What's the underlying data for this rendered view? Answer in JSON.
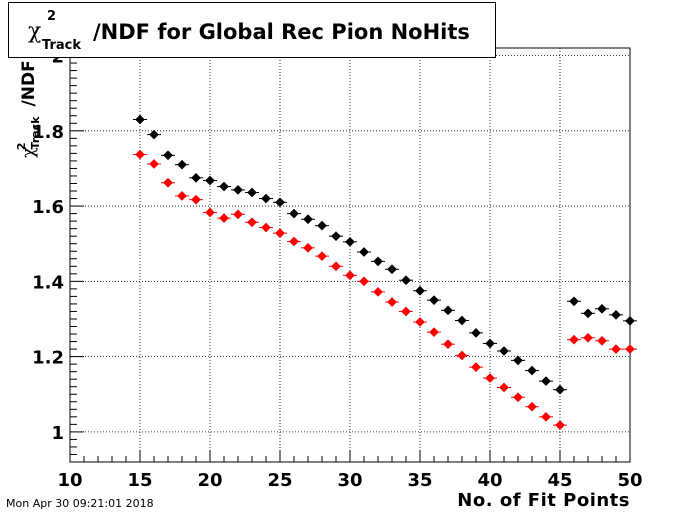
{
  "title": {
    "chi_symbol": "χ",
    "superscript": "2",
    "subscript": "Track",
    "rest": "/NDF for Global Rec Pion NoHits"
  },
  "axes": {
    "xlabel": "No. of Fit Points",
    "ylabel_chi": "χ",
    "ylabel_sup": "2",
    "ylabel_sub": "Track",
    "ylabel_rest": "/NDF"
  },
  "timestamp": "Mon Apr 30 09:21:01 2018",
  "chart_data": {
    "type": "scatter",
    "xlim": [
      10,
      50
    ],
    "ylim": [
      0.92,
      2.02
    ],
    "x_ticks": [
      10,
      15,
      20,
      25,
      30,
      35,
      40,
      45,
      50
    ],
    "y_ticks": [
      1.0,
      1.2,
      1.4,
      1.6,
      1.8,
      2.0
    ],
    "y_tick_labels": [
      "1",
      "1.2",
      "1.4",
      "1.6",
      "1.8",
      "2"
    ],
    "grid": true,
    "series": [
      {
        "color": "#000000",
        "x": [
          15,
          16,
          17,
          18,
          19,
          20,
          21,
          22,
          23,
          24,
          25,
          26,
          27,
          28,
          29,
          30,
          31,
          32,
          33,
          34,
          35,
          36,
          37,
          38,
          39,
          40,
          41,
          42,
          43,
          44,
          45,
          46,
          47,
          48,
          49,
          50
        ],
        "y": [
          1.83,
          1.79,
          1.735,
          1.71,
          1.675,
          1.668,
          1.652,
          1.643,
          1.636,
          1.62,
          1.61,
          1.58,
          1.565,
          1.548,
          1.52,
          1.505,
          1.478,
          1.453,
          1.432,
          1.403,
          1.375,
          1.35,
          1.323,
          1.296,
          1.263,
          1.235,
          1.215,
          1.19,
          1.163,
          1.135,
          1.112,
          1.347,
          1.315,
          1.327,
          1.311,
          1.295
        ]
      },
      {
        "color": "#ff0000",
        "x": [
          15,
          16,
          17,
          18,
          19,
          20,
          21,
          22,
          23,
          24,
          25,
          26,
          27,
          28,
          29,
          30,
          31,
          32,
          33,
          34,
          35,
          36,
          37,
          38,
          39,
          40,
          41,
          42,
          43,
          44,
          45,
          46,
          47,
          48,
          49,
          50
        ],
        "y": [
          1.737,
          1.712,
          1.662,
          1.627,
          1.617,
          1.583,
          1.568,
          1.578,
          1.557,
          1.543,
          1.528,
          1.506,
          1.489,
          1.467,
          1.44,
          1.416,
          1.4,
          1.372,
          1.345,
          1.32,
          1.292,
          1.265,
          1.233,
          1.203,
          1.172,
          1.143,
          1.118,
          1.092,
          1.067,
          1.04,
          1.018,
          1.245,
          1.25,
          1.242,
          1.22,
          1.22
        ]
      }
    ]
  }
}
